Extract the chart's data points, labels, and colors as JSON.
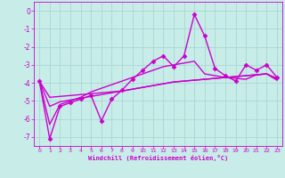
{
  "xlabel": "Windchill (Refroidissement éolien,°C)",
  "bg_color": "#c8ece8",
  "grid_color": "#a8d8d4",
  "line_color": "#cc00cc",
  "xlim": [
    -0.5,
    23.5
  ],
  "ylim": [
    -7.5,
    0.5
  ],
  "xticks": [
    0,
    1,
    2,
    3,
    4,
    5,
    6,
    7,
    8,
    9,
    10,
    11,
    12,
    13,
    14,
    15,
    16,
    17,
    18,
    19,
    20,
    21,
    22,
    23
  ],
  "yticks": [
    0,
    -1,
    -2,
    -3,
    -4,
    -5,
    -6,
    -7
  ],
  "series": {
    "line1": {
      "x": [
        0,
        1,
        2,
        3,
        4,
        5,
        6,
        7,
        8,
        9,
        10,
        11,
        12,
        13,
        14,
        15,
        16,
        17,
        18,
        19,
        20,
        21,
        22,
        23
      ],
      "y": [
        -3.9,
        -7.1,
        -5.3,
        -5.1,
        -4.9,
        -4.7,
        -6.1,
        -4.9,
        -4.4,
        -3.8,
        -3.3,
        -2.8,
        -2.5,
        -3.1,
        -2.5,
        -0.2,
        -1.4,
        -3.2,
        -3.6,
        -3.9,
        -3.0,
        -3.3,
        -3.0,
        -3.7
      ],
      "has_marker": true,
      "markersize": 2.5,
      "linewidth": 1.0
    },
    "line2": {
      "x": [
        0,
        1,
        2,
        3,
        4,
        5,
        6,
        7,
        8,
        9,
        10,
        11,
        12,
        13,
        14,
        15,
        16,
        17,
        18,
        19,
        20,
        21,
        22,
        23
      ],
      "y": [
        -3.9,
        -4.8,
        -4.75,
        -4.7,
        -4.65,
        -4.6,
        -4.55,
        -4.5,
        -4.45,
        -4.35,
        -4.25,
        -4.15,
        -4.05,
        -3.95,
        -3.9,
        -3.85,
        -3.8,
        -3.75,
        -3.7,
        -3.65,
        -3.6,
        -3.55,
        -3.5,
        -3.75
      ],
      "has_marker": false,
      "linewidth": 1.0
    },
    "line3": {
      "x": [
        0,
        1,
        2,
        3,
        4,
        5,
        6,
        7,
        8,
        9,
        10,
        11,
        12,
        13,
        14,
        15,
        16,
        17,
        18,
        19,
        20,
        21,
        22,
        23
      ],
      "y": [
        -3.9,
        -5.3,
        -5.05,
        -4.95,
        -4.85,
        -4.75,
        -4.65,
        -4.55,
        -4.45,
        -4.35,
        -4.25,
        -4.15,
        -4.05,
        -3.95,
        -3.9,
        -3.85,
        -3.8,
        -3.75,
        -3.7,
        -3.65,
        -3.6,
        -3.55,
        -3.5,
        -3.8
      ],
      "has_marker": false,
      "linewidth": 1.0
    },
    "line4": {
      "x": [
        0,
        1,
        2,
        3,
        4,
        5,
        6,
        7,
        8,
        9,
        10,
        11,
        12,
        13,
        14,
        15,
        16,
        17,
        18,
        19,
        20,
        21,
        22,
        23
      ],
      "y": [
        -3.9,
        -6.3,
        -5.2,
        -5.0,
        -4.8,
        -4.5,
        -4.3,
        -4.1,
        -3.9,
        -3.7,
        -3.5,
        -3.3,
        -3.1,
        -3.0,
        -2.9,
        -2.8,
        -3.5,
        -3.6,
        -3.7,
        -3.75,
        -3.8,
        -3.55,
        -3.5,
        -3.85
      ],
      "has_marker": false,
      "linewidth": 1.0
    }
  }
}
